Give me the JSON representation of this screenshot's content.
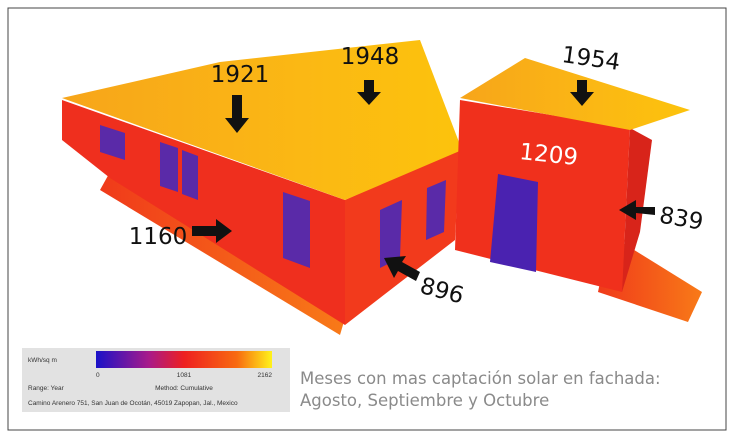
{
  "annotations": [
    "1921",
    "1948",
    "1954",
    "1209",
    "1160",
    "839",
    "896"
  ],
  "legend": {
    "unit": "kWh/sq m",
    "scale": [
      "0",
      "1081",
      "2162"
    ],
    "range": "Range: Year",
    "method": "Method: Cumulative",
    "location": "Camino Arenero 751, San Juan de Ocotán, 45019 Zapopan, Jal., Mexico"
  },
  "caption": [
    "Meses con mas captación solar en fachada:",
    "Agosto, Septiembre y Octubre"
  ]
}
